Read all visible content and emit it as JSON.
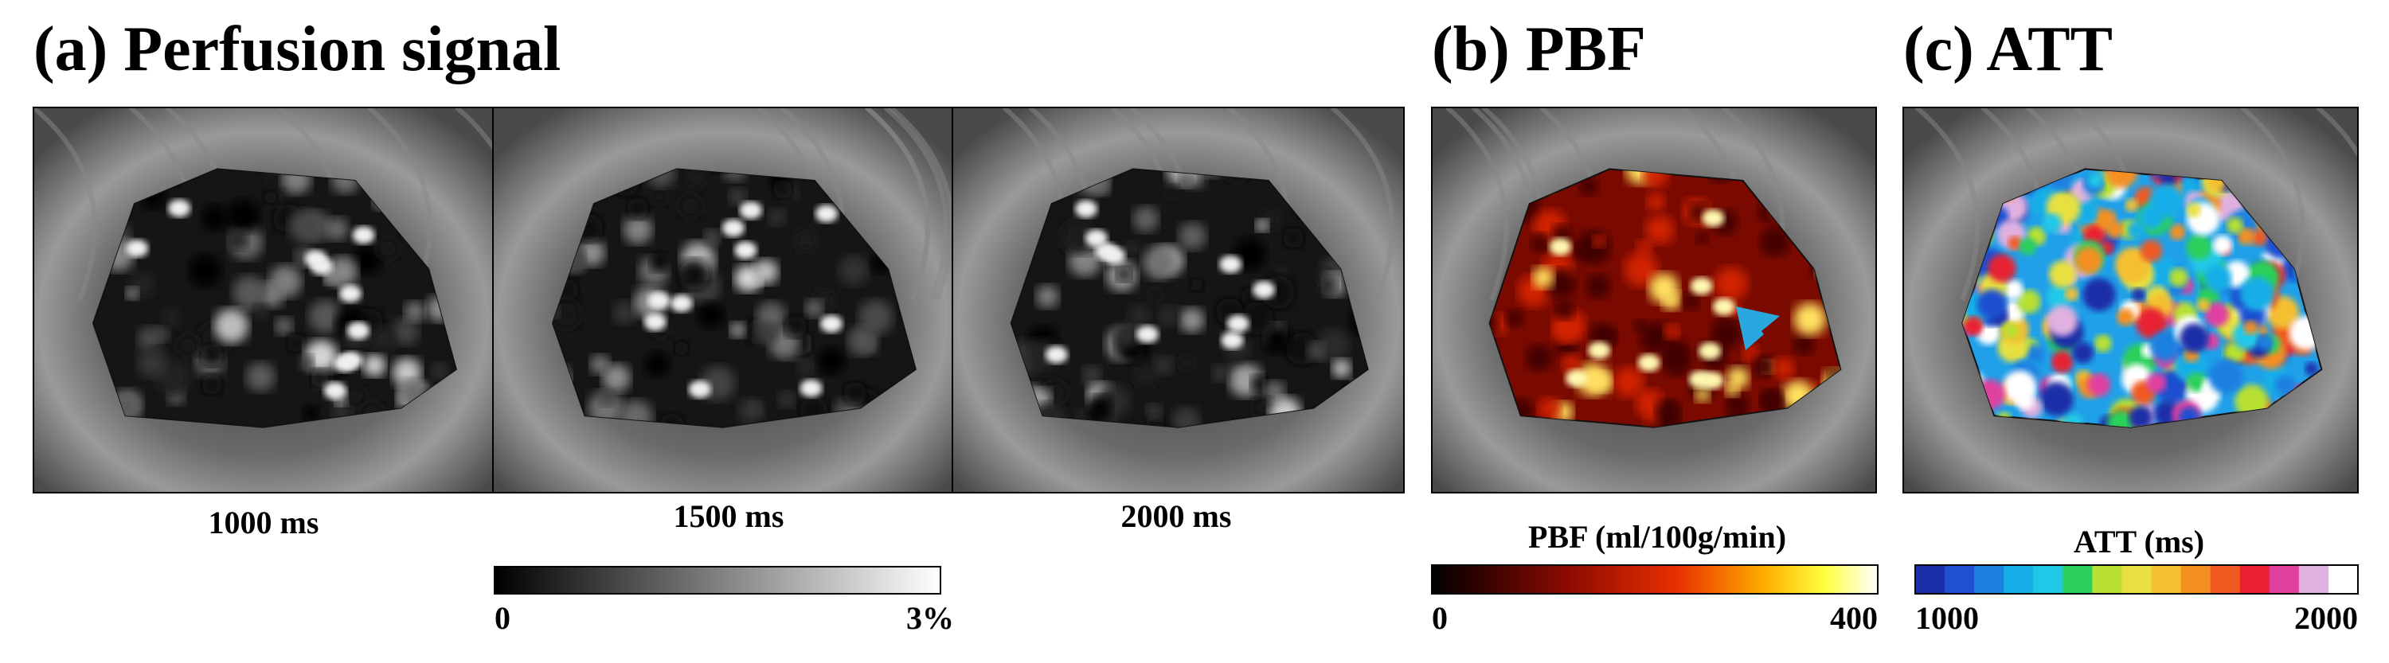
{
  "panels": [
    {
      "title": "(a) Perfusion signal",
      "images": [
        "1000 ms",
        "1500 ms",
        "2000 ms"
      ],
      "colorbar": {
        "min": "0",
        "max": "3%"
      }
    },
    {
      "title": "(b) PBF",
      "colorbar": {
        "label": "PBF (ml/100g/min)",
        "min": "0",
        "max": "400"
      }
    },
    {
      "title": "(c) ATT",
      "colorbar": {
        "label": "ATT (ms)",
        "min": "1000",
        "max": "2000"
      }
    }
  ]
}
